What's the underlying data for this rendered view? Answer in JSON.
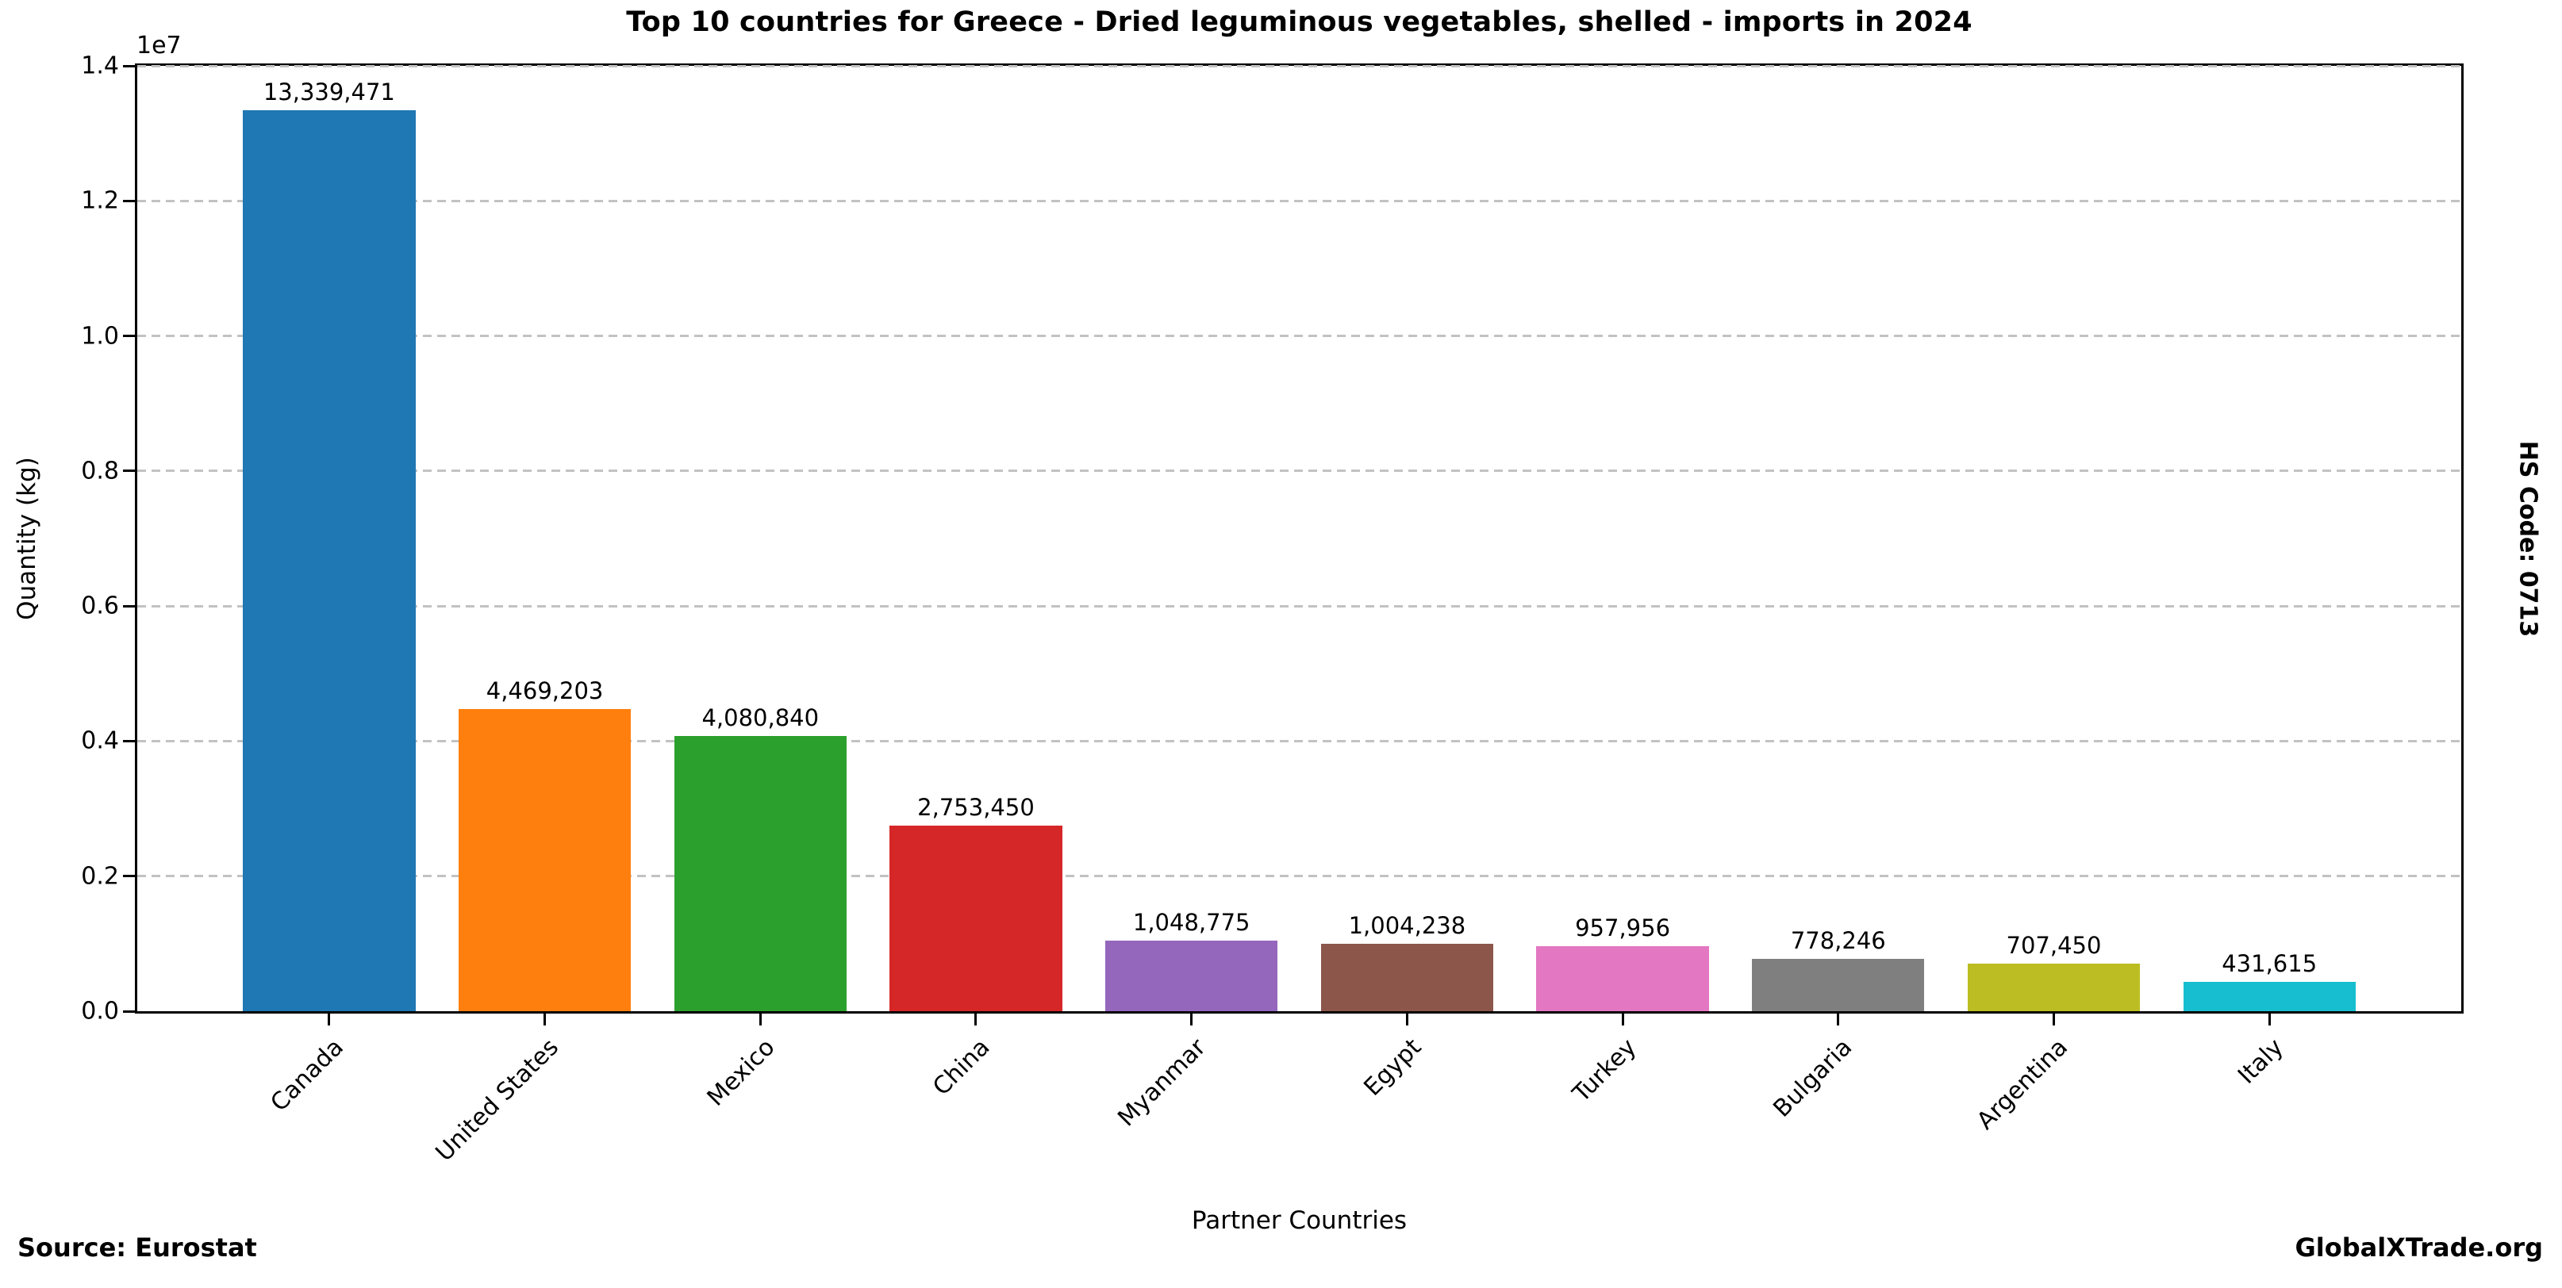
{
  "title": "Top 10 countries for Greece - Dried leguminous vegetables, shelled - imports in 2024",
  "right_side_label": "HS Code: 0713",
  "footer": {
    "source": "Source: Eurostat",
    "brand": "GlobalXTrade.org"
  },
  "chart_data": {
    "type": "bar",
    "title": "Top 10 countries for Greece - Dried leguminous vegetables, shelled - imports in 2024",
    "xlabel": "Partner Countries",
    "ylabel": "Quantity (kg)",
    "y_offset_label": "1e7",
    "ylim": [
      0,
      14000000
    ],
    "yticks": [
      "0.0",
      "0.2",
      "0.4",
      "0.6",
      "0.8",
      "1.0",
      "1.2",
      "1.4"
    ],
    "grid": "horizontal dashed gray",
    "legend": "none",
    "categories": [
      "Canada",
      "United States",
      "Mexico",
      "China",
      "Myanmar",
      "Egypt",
      "Turkey",
      "Bulgaria",
      "Argentina",
      "Italy"
    ],
    "values": [
      13339471,
      4469203,
      4080840,
      2753450,
      1048775,
      1004238,
      957956,
      778246,
      707450,
      431615
    ],
    "value_labels": [
      "13,339,471",
      "4,469,203",
      "4,080,840",
      "2,753,450",
      "1,048,775",
      "1,004,238",
      "957,956",
      "778,246",
      "707,450",
      "431,615"
    ],
    "bar_colors": [
      "#1f77b4",
      "#ff7f0e",
      "#2ca02c",
      "#d62728",
      "#9467bd",
      "#8c564b",
      "#e377c2",
      "#7f7f7f",
      "#bcbd22",
      "#17becf"
    ],
    "grid_color": "#c2c2c2",
    "axis_color": "#000000"
  }
}
